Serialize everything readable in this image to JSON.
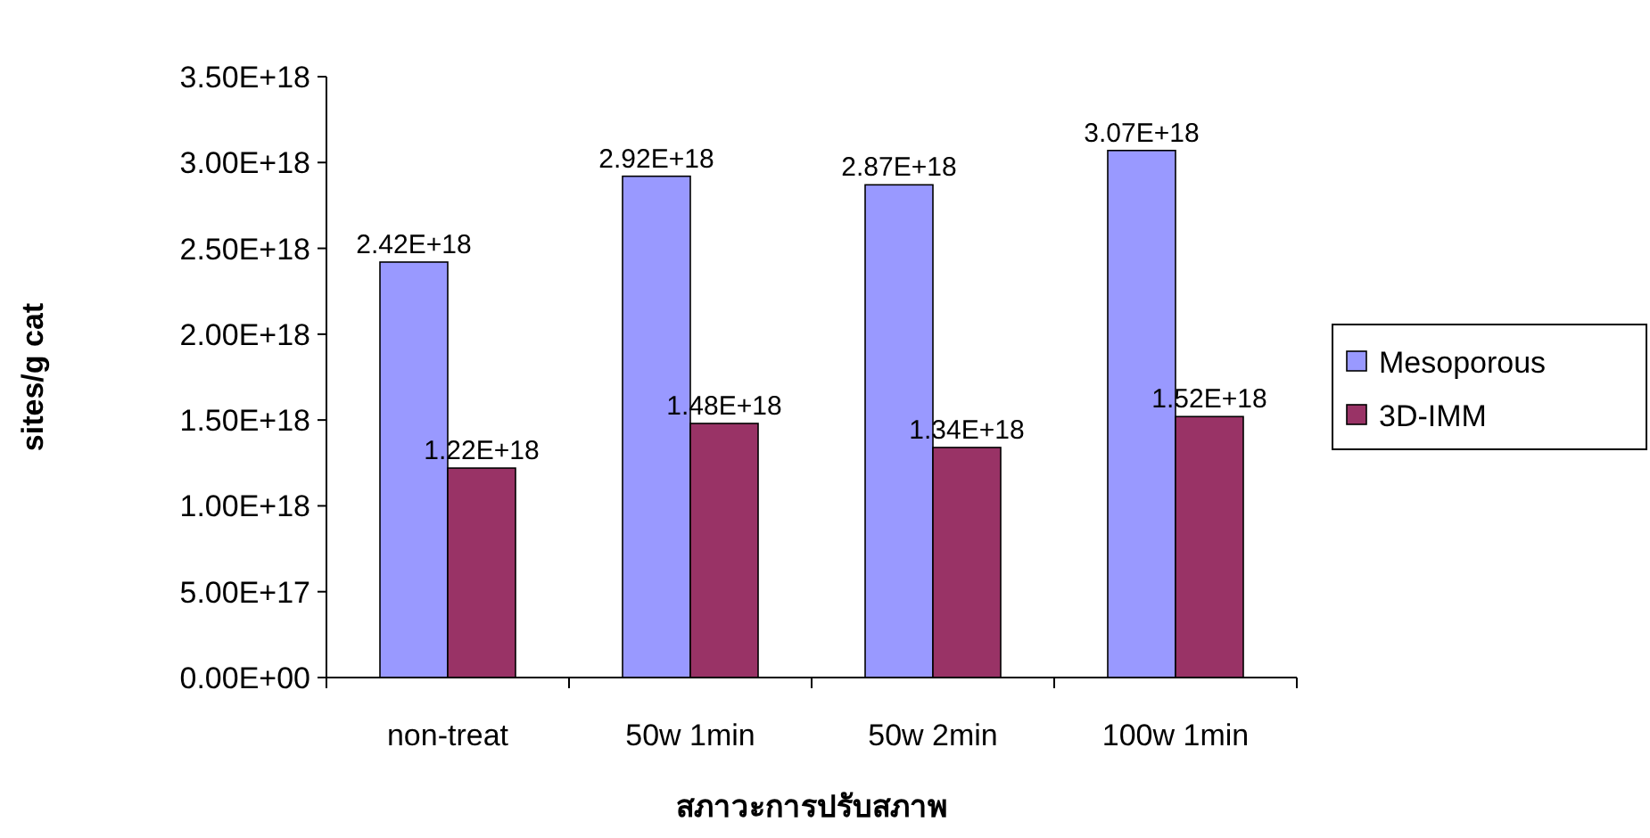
{
  "chart_data": {
    "type": "bar",
    "ylabel": "sites/g cat",
    "xlabel": "สภาวะการปรับสภาพ",
    "categories": [
      "non-treat",
      "50w 1min",
      "50w 2min",
      "100w 1min"
    ],
    "series": [
      {
        "name": "Mesoporous",
        "color": "#9999ff",
        "values": [
          2.42e+18,
          2.92e+18,
          2.87e+18,
          3.07e+18
        ],
        "value_labels": [
          "2.42E+18",
          "2.92E+18",
          "2.87E+18",
          "3.07E+18"
        ]
      },
      {
        "name": "3D-IMM",
        "color": "#993366",
        "values": [
          1.22e+18,
          1.48e+18,
          1.34e+18,
          1.52e+18
        ],
        "value_labels": [
          "1.22E+18",
          "1.48E+18",
          "1.34E+18",
          "1.52E+18"
        ]
      }
    ],
    "ylim": [
      0,
      3.5e+18
    ],
    "yticks": [
      {
        "value": 0,
        "label": "0.00E+00"
      },
      {
        "value": 5e+17,
        "label": "5.00E+17"
      },
      {
        "value": 1e+18,
        "label": "1.00E+18"
      },
      {
        "value": 1.5e+18,
        "label": "1.50E+18"
      },
      {
        "value": 2e+18,
        "label": "2.00E+18"
      },
      {
        "value": 2.5e+18,
        "label": "2.50E+18"
      },
      {
        "value": 3e+18,
        "label": "3.00E+18"
      },
      {
        "value": 3.5e+18,
        "label": "3.50E+18"
      }
    ],
    "grid": false,
    "legend": "right"
  }
}
